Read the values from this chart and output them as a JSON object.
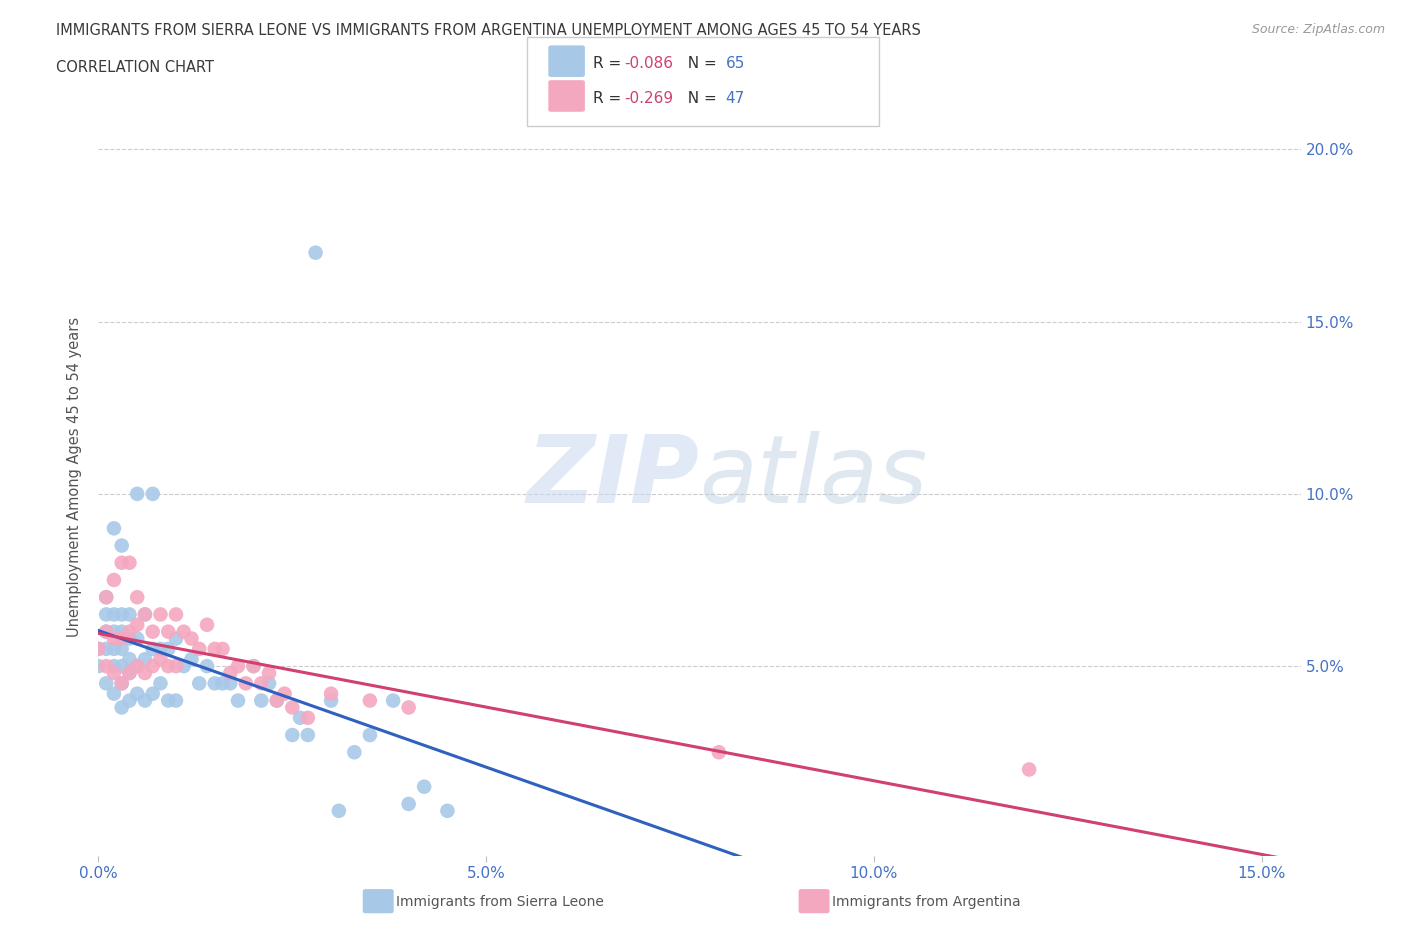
{
  "title_line1": "IMMIGRANTS FROM SIERRA LEONE VS IMMIGRANTS FROM ARGENTINA UNEMPLOYMENT AMONG AGES 45 TO 54 YEARS",
  "title_line2": "CORRELATION CHART",
  "source": "Source: ZipAtlas.com",
  "ylabel": "Unemployment Among Ages 45 to 54 years",
  "xlim": [
    0.0,
    0.155
  ],
  "ylim": [
    -0.005,
    0.215
  ],
  "xticks": [
    0.0,
    0.05,
    0.1,
    0.15
  ],
  "xtick_labels": [
    "0.0%",
    "5.0%",
    "10.0%",
    "15.0%"
  ],
  "ytick_vals": [
    0.05,
    0.1,
    0.15,
    0.2
  ],
  "ytick_labels": [
    "5.0%",
    "10.0%",
    "15.0%",
    "20.0%"
  ],
  "sierra_leone_color": "#a8c8e8",
  "argentina_color": "#f4a8c0",
  "sierra_leone_line_color": "#3060c0",
  "argentina_line_color": "#d04070",
  "R_sierra": -0.086,
  "N_sierra": 65,
  "R_argentina": -0.269,
  "N_argentina": 47,
  "legend_label_sierra": "Immigrants from Sierra Leone",
  "legend_label_argentina": "Immigrants from Argentina",
  "watermark_zip": "ZIP",
  "watermark_atlas": "atlas",
  "title_color": "#3a3a3a",
  "axis_label_color": "#4472c4",
  "sierra_leone_x": [
    0.0,
    0.0,
    0.001,
    0.001,
    0.001,
    0.001,
    0.001,
    0.002,
    0.002,
    0.002,
    0.002,
    0.002,
    0.002,
    0.003,
    0.003,
    0.003,
    0.003,
    0.003,
    0.003,
    0.003,
    0.004,
    0.004,
    0.004,
    0.004,
    0.004,
    0.005,
    0.005,
    0.005,
    0.005,
    0.006,
    0.006,
    0.006,
    0.007,
    0.007,
    0.007,
    0.008,
    0.008,
    0.009,
    0.009,
    0.01,
    0.01,
    0.011,
    0.012,
    0.013,
    0.014,
    0.015,
    0.016,
    0.017,
    0.018,
    0.02,
    0.021,
    0.022,
    0.023,
    0.025,
    0.026,
    0.027,
    0.028,
    0.03,
    0.031,
    0.033,
    0.035,
    0.038,
    0.04,
    0.042,
    0.045
  ],
  "sierra_leone_y": [
    0.05,
    0.055,
    0.045,
    0.055,
    0.06,
    0.065,
    0.07,
    0.042,
    0.05,
    0.055,
    0.06,
    0.065,
    0.09,
    0.038,
    0.045,
    0.05,
    0.055,
    0.06,
    0.065,
    0.085,
    0.04,
    0.048,
    0.052,
    0.058,
    0.065,
    0.042,
    0.05,
    0.058,
    0.1,
    0.04,
    0.052,
    0.065,
    0.042,
    0.055,
    0.1,
    0.045,
    0.055,
    0.04,
    0.055,
    0.04,
    0.058,
    0.05,
    0.052,
    0.045,
    0.05,
    0.045,
    0.045,
    0.045,
    0.04,
    0.05,
    0.04,
    0.045,
    0.04,
    0.03,
    0.035,
    0.03,
    0.17,
    0.04,
    0.008,
    0.025,
    0.03,
    0.04,
    0.01,
    0.015,
    0.008
  ],
  "argentina_x": [
    0.0,
    0.001,
    0.001,
    0.001,
    0.002,
    0.002,
    0.002,
    0.003,
    0.003,
    0.003,
    0.004,
    0.004,
    0.004,
    0.005,
    0.005,
    0.005,
    0.006,
    0.006,
    0.007,
    0.007,
    0.008,
    0.008,
    0.009,
    0.009,
    0.01,
    0.01,
    0.011,
    0.012,
    0.013,
    0.014,
    0.015,
    0.016,
    0.017,
    0.018,
    0.019,
    0.02,
    0.021,
    0.022,
    0.023,
    0.024,
    0.025,
    0.027,
    0.03,
    0.035,
    0.04,
    0.08,
    0.12
  ],
  "argentina_y": [
    0.055,
    0.05,
    0.06,
    0.07,
    0.048,
    0.058,
    0.075,
    0.045,
    0.058,
    0.08,
    0.048,
    0.06,
    0.08,
    0.05,
    0.062,
    0.07,
    0.048,
    0.065,
    0.05,
    0.06,
    0.052,
    0.065,
    0.05,
    0.06,
    0.05,
    0.065,
    0.06,
    0.058,
    0.055,
    0.062,
    0.055,
    0.055,
    0.048,
    0.05,
    0.045,
    0.05,
    0.045,
    0.048,
    0.04,
    0.042,
    0.038,
    0.035,
    0.042,
    0.04,
    0.038,
    0.025,
    0.02
  ]
}
